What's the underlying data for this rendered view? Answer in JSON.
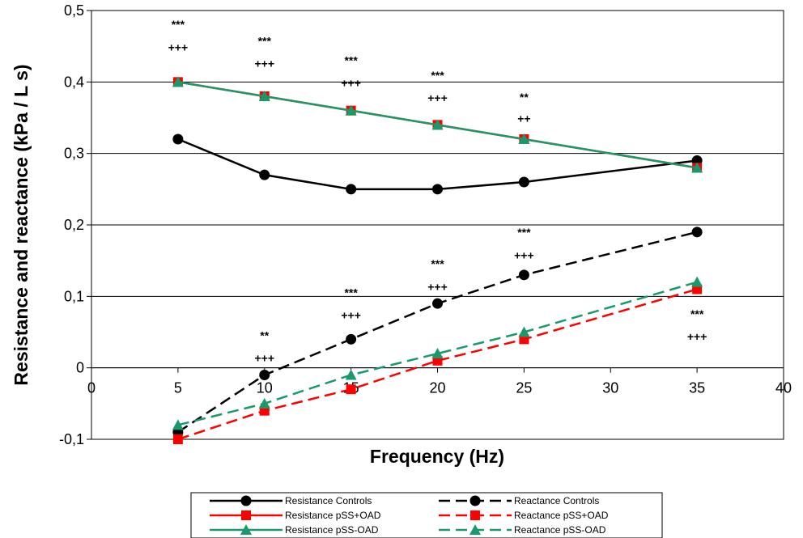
{
  "chart_data": {
    "type": "line",
    "xlabel": "Frequency (Hz)",
    "ylabel": "Resistance and reactance (kPa / L s)",
    "xlim": [
      0,
      40
    ],
    "ylim": [
      -0.1,
      0.5
    ],
    "x_ticks": [
      "0",
      "5",
      "10",
      "15",
      "20",
      "25",
      "30",
      "35",
      "40"
    ],
    "x_tick_values": [
      0,
      5,
      10,
      15,
      20,
      25,
      30,
      35,
      40
    ],
    "y_ticks": [
      "-0,1",
      "0",
      "0,1",
      "0,2",
      "0,3",
      "0,4",
      "0,5"
    ],
    "y_tick_values": [
      -0.1,
      0,
      0.1,
      0.2,
      0.3,
      0.4,
      0.5
    ],
    "grid": "horizontal",
    "legend_position": "bottom",
    "x": [
      5,
      10,
      15,
      20,
      25,
      35
    ],
    "series": [
      {
        "name": "Resistance Controls",
        "values": [
          0.32,
          0.27,
          0.25,
          0.25,
          0.26,
          0.29
        ],
        "color": "#000000",
        "marker": "circle",
        "dash": false
      },
      {
        "name": "Resistance pSS+OAD",
        "values": [
          0.4,
          0.38,
          0.36,
          0.34,
          0.32,
          0.28
        ],
        "color": "#ff0000",
        "marker": "square",
        "dash": false
      },
      {
        "name": "Resistance pSS-OAD",
        "values": [
          0.4,
          0.38,
          0.36,
          0.34,
          0.32,
          0.28
        ],
        "color": "#1a9a6a",
        "marker": "triangle",
        "dash": false
      },
      {
        "name": "Reactance Controls",
        "values": [
          -0.09,
          -0.01,
          0.04,
          0.09,
          0.13,
          0.19
        ],
        "color": "#000000",
        "marker": "circle",
        "dash": true
      },
      {
        "name": "Reactance pSS+OAD",
        "values": [
          -0.1,
          -0.06,
          -0.03,
          0.01,
          0.04,
          0.11
        ],
        "color": "#ff0000",
        "marker": "square",
        "dash": true
      },
      {
        "name": "Reactance pSS-OAD",
        "values": [
          -0.08,
          -0.05,
          -0.01,
          0.02,
          0.05,
          0.12
        ],
        "color": "#1a9a6a",
        "marker": "triangle",
        "dash": true
      }
    ],
    "legend_order": [
      0,
      3,
      1,
      4,
      2,
      5
    ],
    "annotations": [
      {
        "x": 5,
        "y": 0.475,
        "text": "***"
      },
      {
        "x": 5,
        "y": 0.443,
        "text": "+++"
      },
      {
        "x": 10,
        "y": 0.452,
        "text": "***"
      },
      {
        "x": 10,
        "y": 0.42,
        "text": "+++"
      },
      {
        "x": 15,
        "y": 0.425,
        "text": "***"
      },
      {
        "x": 15,
        "y": 0.393,
        "text": "+++"
      },
      {
        "x": 20,
        "y": 0.404,
        "text": "***"
      },
      {
        "x": 20,
        "y": 0.372,
        "text": "+++"
      },
      {
        "x": 25,
        "y": 0.373,
        "text": "**"
      },
      {
        "x": 25,
        "y": 0.343,
        "text": "++"
      },
      {
        "x": 25,
        "y": 0.184,
        "text": "***"
      },
      {
        "x": 25,
        "y": 0.152,
        "text": "+++"
      },
      {
        "x": 20,
        "y": 0.14,
        "text": "***"
      },
      {
        "x": 20,
        "y": 0.108,
        "text": "+++"
      },
      {
        "x": 15,
        "y": 0.1,
        "text": "***"
      },
      {
        "x": 15,
        "y": 0.068,
        "text": "+++"
      },
      {
        "x": 10,
        "y": 0.04,
        "text": "**"
      },
      {
        "x": 10,
        "y": 0.008,
        "text": "+++"
      },
      {
        "x": 35,
        "y": 0.07,
        "text": "***"
      },
      {
        "x": 35,
        "y": 0.038,
        "text": "+++"
      }
    ]
  }
}
